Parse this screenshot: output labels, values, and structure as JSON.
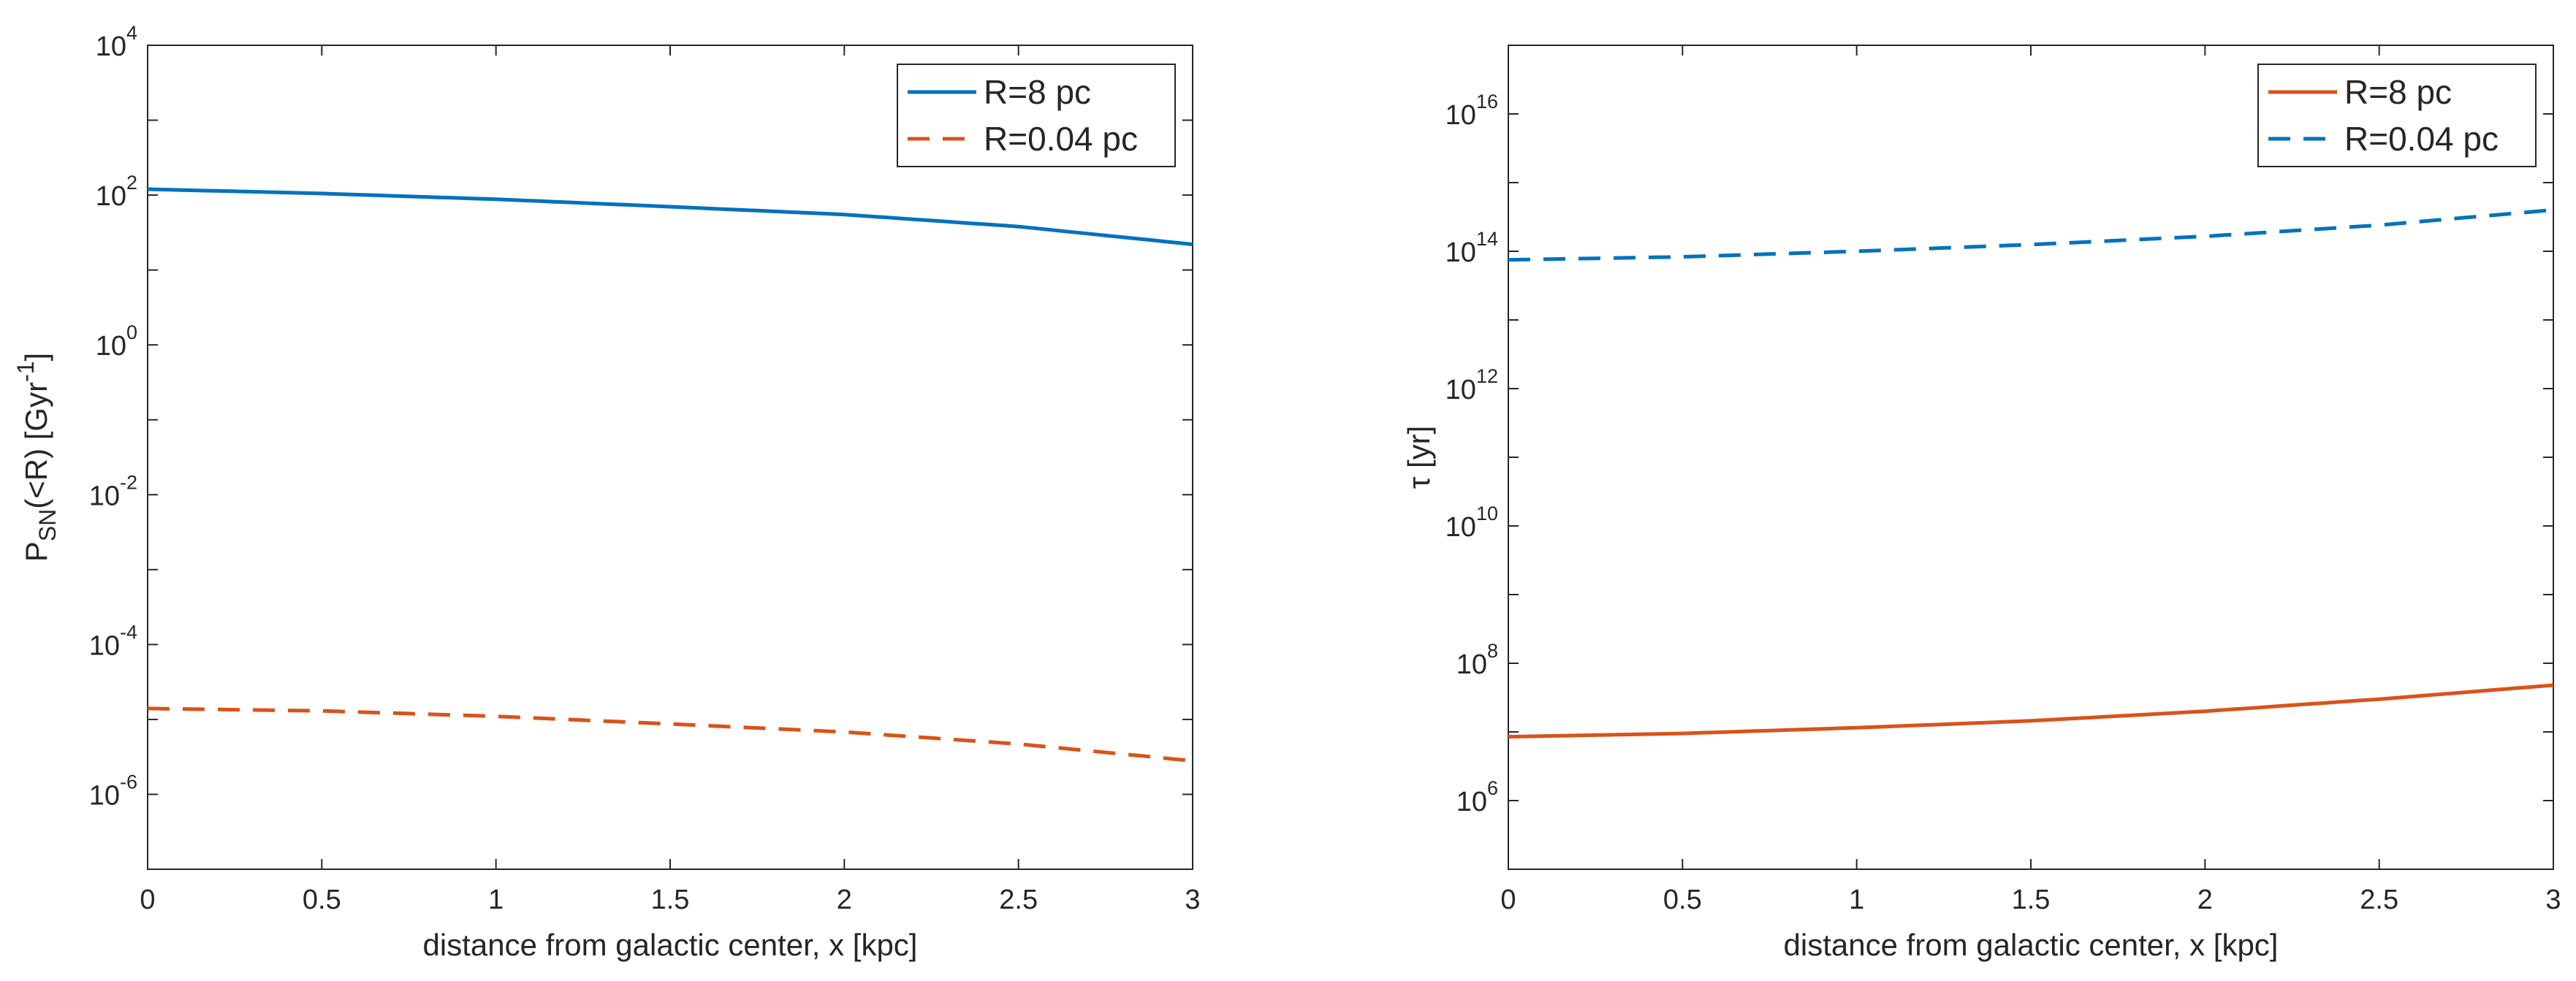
{
  "chart_data": [
    {
      "type": "line",
      "panel": "left",
      "title": "",
      "xlabel": "distance from galactic center, x [kpc]",
      "ylabel_parts": {
        "base": "P",
        "sub": "SN",
        "mid": "(<R) [Gyr",
        "sup": "-1",
        "end": "]"
      },
      "yscale": "log",
      "xlim": [
        0,
        3
      ],
      "ylim_exp": [
        -7,
        4
      ],
      "x_ticks": [
        "0",
        "0.5",
        "1",
        "1.5",
        "2",
        "2.5",
        "3"
      ],
      "y_ticks": [
        {
          "base": "10",
          "exp": "4"
        },
        {
          "base": "10",
          "exp": "2"
        },
        {
          "base": "10",
          "exp": "0"
        },
        {
          "base": "10",
          "exp": "-2"
        },
        {
          "base": "10",
          "exp": "-4"
        },
        {
          "base": "10",
          "exp": "-6"
        }
      ],
      "legend_position": "top-right",
      "series": [
        {
          "name": "R=8 pc",
          "color": "#0072BD",
          "dash": "solid",
          "x": [
            0,
            0.5,
            1,
            1.5,
            2,
            2.5,
            3
          ],
          "y": [
            120,
            105,
            88,
            70,
            55,
            38,
            22
          ]
        },
        {
          "name": "R=0.04 pc",
          "color": "#D95319",
          "dash": "dashed",
          "x": [
            0,
            0.5,
            1,
            1.5,
            2,
            2.5,
            3
          ],
          "y": [
            1.4e-05,
            1.3e-05,
            1.1e-05,
            8.7e-06,
            6.8e-06,
            4.7e-06,
            2.8e-06
          ]
        }
      ]
    },
    {
      "type": "line",
      "panel": "right",
      "title": "",
      "xlabel": "distance from galactic center, x [kpc]",
      "ylabel_parts": {
        "base": "τ",
        "sub": "",
        "mid": " [yr]",
        "sup": "",
        "end": ""
      },
      "yscale": "log",
      "xlim": [
        0,
        3
      ],
      "ylim_exp": [
        5,
        17
      ],
      "x_ticks": [
        "0",
        "0.5",
        "1",
        "1.5",
        "2",
        "2.5",
        "3"
      ],
      "y_ticks": [
        {
          "base": "10",
          "exp": "16"
        },
        {
          "base": "10",
          "exp": "14"
        },
        {
          "base": "10",
          "exp": "12"
        },
        {
          "base": "10",
          "exp": "10"
        },
        {
          "base": "10",
          "exp": "8"
        },
        {
          "base": "10",
          "exp": "6"
        }
      ],
      "legend_position": "top-right",
      "series": [
        {
          "name": "R=8 pc",
          "color": "#D95319",
          "dash": "solid",
          "x": [
            0,
            0.5,
            1,
            1.5,
            2,
            2.5,
            3
          ],
          "y": [
            8500000.0,
            9500000.0,
            11500000.0,
            14500000.0,
            20000000.0,
            30000000.0,
            48000000.0
          ]
        },
        {
          "name": "R=0.04 pc",
          "color": "#0072BD",
          "dash": "dashed",
          "x": [
            0,
            0.5,
            1,
            1.5,
            2,
            2.5,
            3
          ],
          "y": [
            75000000000000.0,
            83000000000000.0,
            100000000000000.0,
            125000000000000.0,
            165000000000000.0,
            240000000000000.0,
            400000000000000.0
          ]
        }
      ]
    }
  ]
}
